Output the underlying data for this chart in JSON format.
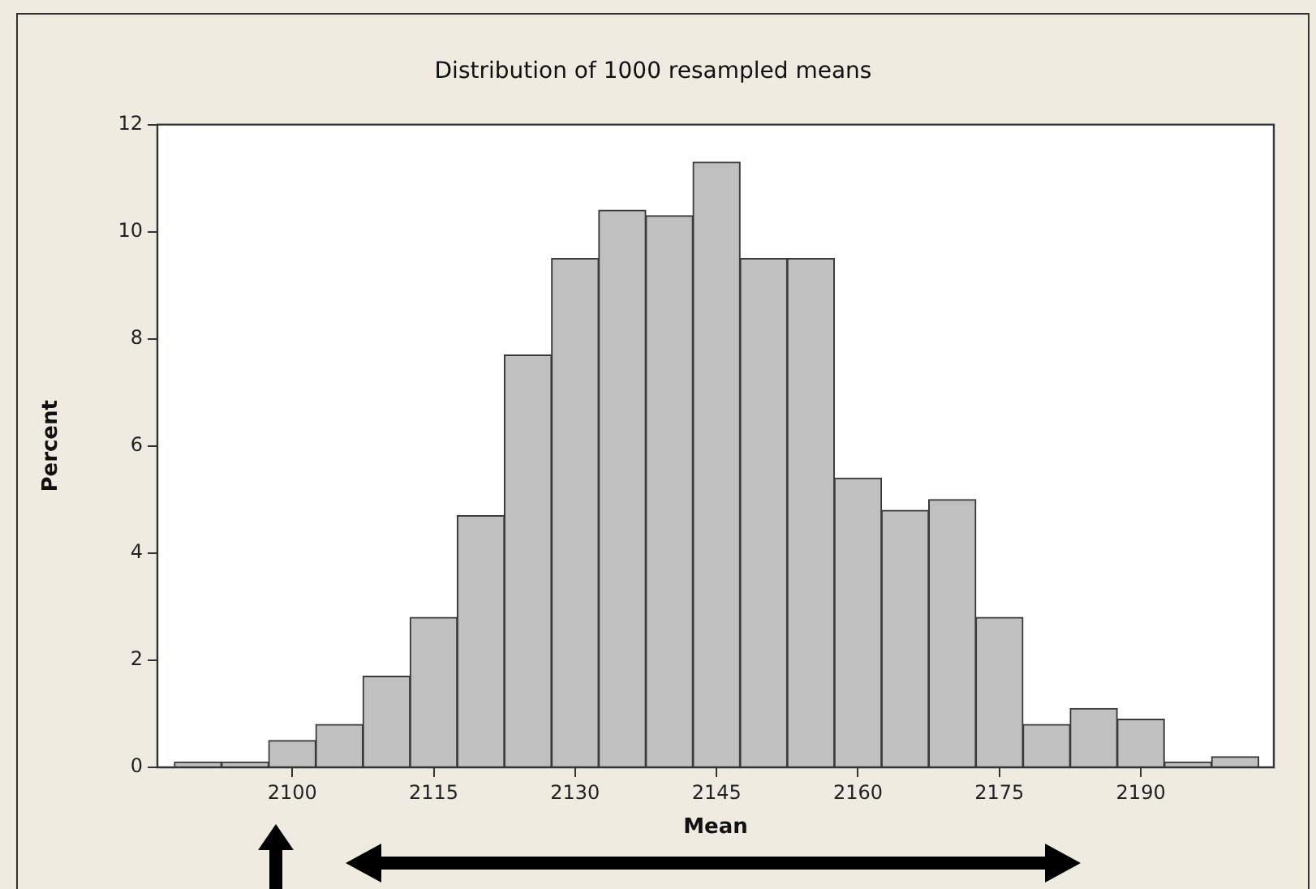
{
  "chart_data": {
    "type": "histogram",
    "title": "Distribution of 1000 resampled means",
    "xlabel": "Mean",
    "ylabel": "Percent",
    "bins": [
      2087.5,
      2092.5,
      2097.5,
      2102.5,
      2107.5,
      2112.5,
      2117.5,
      2122.5,
      2127.5,
      2132.5,
      2137.5,
      2142.5,
      2147.5,
      2152.5,
      2157.5,
      2162.5,
      2167.5,
      2172.5,
      2177.5,
      2182.5,
      2187.5,
      2192.5,
      2197.5,
      2202.5
    ],
    "values": [
      0.1,
      0.1,
      0.5,
      0.8,
      1.7,
      2.8,
      4.7,
      7.7,
      9.5,
      10.4,
      10.3,
      11.3,
      9.5,
      9.5,
      5.4,
      4.8,
      5.0,
      2.8,
      0.8,
      1.1,
      0.9,
      0.1,
      0.2
    ],
    "color": "#c0c0c0",
    "xlim": [
      2085.7,
      2204.1
    ],
    "xticks": [
      2100,
      2115,
      2130,
      2145,
      2160,
      2175,
      2190
    ],
    "ylim": [
      0,
      12
    ],
    "yticks": [
      0,
      2,
      4,
      6,
      8,
      10,
      12
    ],
    "grid": false
  }
}
